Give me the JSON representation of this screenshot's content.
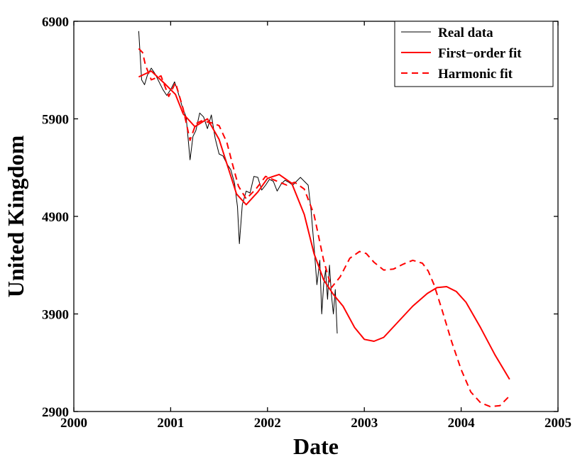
{
  "chart_data": {
    "type": "line",
    "title": "",
    "xlabel": "Date",
    "ylabel": "United Kingdom",
    "xlim": [
      2000,
      2005
    ],
    "ylim": [
      2900,
      6900
    ],
    "x_ticks": [
      "2000",
      "2001",
      "2002",
      "2003",
      "2004",
      "2005"
    ],
    "y_ticks": [
      "2900",
      "3900",
      "4900",
      "5900",
      "6900"
    ],
    "legend": {
      "position": "top-right",
      "entries": [
        "Real data",
        "First−order fit",
        "Harmonic fit"
      ]
    },
    "series": [
      {
        "name": "Real data",
        "style": "thin solid",
        "color": "#000000",
        "x": [
          2000.67,
          2000.7,
          2000.73,
          2000.76,
          2000.8,
          2000.84,
          2000.88,
          2000.92,
          2000.96,
          2001.0,
          2001.04,
          2001.08,
          2001.12,
          2001.16,
          2001.2,
          2001.23,
          2001.26,
          2001.3,
          2001.34,
          2001.38,
          2001.42,
          2001.46,
          2001.5,
          2001.54,
          2001.58,
          2001.62,
          2001.66,
          2001.69,
          2001.71,
          2001.74,
          2001.78,
          2001.82,
          2001.86,
          2001.9,
          2001.94,
          2001.98,
          2002.02,
          2002.06,
          2002.1,
          2002.14,
          2002.18,
          2002.22,
          2002.26,
          2002.3,
          2002.34,
          2002.38,
          2002.42,
          2002.45,
          2002.48,
          2002.51,
          2002.54,
          2002.56,
          2002.58,
          2002.6,
          2002.62,
          2002.64,
          2002.66,
          2002.68,
          2002.7,
          2002.72
        ],
        "values": [
          6800,
          6300,
          6250,
          6350,
          6420,
          6360,
          6280,
          6200,
          6140,
          6200,
          6280,
          6160,
          6020,
          5920,
          5480,
          5720,
          5780,
          5960,
          5920,
          5800,
          5940,
          5700,
          5540,
          5520,
          5440,
          5380,
          5240,
          5000,
          4620,
          5020,
          5160,
          5140,
          5310,
          5300,
          5170,
          5220,
          5280,
          5260,
          5160,
          5230,
          5270,
          5250,
          5220,
          5260,
          5300,
          5260,
          5220,
          4960,
          4600,
          4200,
          4450,
          3900,
          4200,
          4350,
          4050,
          4400,
          4100,
          3900,
          4150,
          3700
        ]
      },
      {
        "name": "First−order fit",
        "style": "solid",
        "color": "#ff0000",
        "x": [
          2000.67,
          2000.8,
          2000.95,
          2001.05,
          2001.13,
          2001.25,
          2001.38,
          2001.5,
          2001.6,
          2001.68,
          2001.78,
          2001.9,
          2002.0,
          2002.12,
          2002.25,
          2002.38,
          2002.48,
          2002.58,
          2002.68,
          2002.78,
          2002.9,
          2003.0,
          2003.1,
          2003.2,
          2003.35,
          2003.5,
          2003.65,
          2003.75,
          2003.85,
          2003.95,
          2004.05,
          2004.2,
          2004.35,
          2004.5
        ],
        "values": [
          6330,
          6390,
          6250,
          6150,
          5950,
          5820,
          5900,
          5690,
          5380,
          5130,
          5020,
          5150,
          5290,
          5330,
          5240,
          4920,
          4520,
          4250,
          4100,
          3980,
          3760,
          3640,
          3620,
          3660,
          3820,
          3980,
          4110,
          4170,
          4180,
          4130,
          4020,
          3760,
          3480,
          3230
        ]
      },
      {
        "name": "Harmonic fit",
        "style": "dashed",
        "color": "#ff0000",
        "x": [
          2000.67,
          2000.71,
          2000.74,
          2000.8,
          2000.9,
          2000.98,
          2001.05,
          2001.13,
          2001.2,
          2001.26,
          2001.32,
          2001.42,
          2001.5,
          2001.58,
          2001.64,
          2001.7,
          2001.78,
          2001.88,
          2001.98,
          2002.1,
          2002.2,
          2002.28,
          2002.38,
          2002.48,
          2002.58,
          2002.66,
          2002.75,
          2002.85,
          2002.95,
          2003.02,
          2003.1,
          2003.2,
          2003.3,
          2003.4,
          2003.5,
          2003.6,
          2003.66,
          2003.72,
          2003.8,
          2003.9,
          2004.0,
          2004.1,
          2004.2,
          2004.3,
          2004.4,
          2004.5
        ],
        "values": [
          6620,
          6580,
          6450,
          6300,
          6340,
          6130,
          6270,
          6000,
          5680,
          5850,
          5880,
          5860,
          5830,
          5660,
          5430,
          5210,
          5080,
          5180,
          5310,
          5260,
          5220,
          5250,
          5180,
          4920,
          4450,
          4170,
          4280,
          4470,
          4540,
          4520,
          4430,
          4350,
          4360,
          4410,
          4450,
          4420,
          4340,
          4200,
          3950,
          3620,
          3330,
          3100,
          2990,
          2950,
          2960,
          3060
        ]
      }
    ]
  }
}
